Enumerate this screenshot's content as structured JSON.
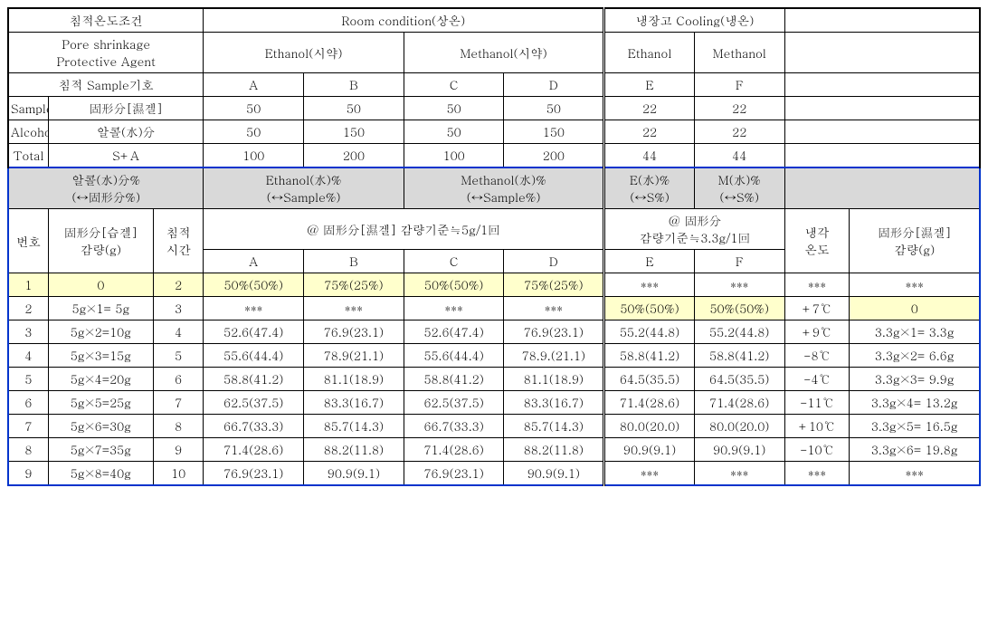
{
  "header": {
    "cond_label": "침적온도조건",
    "room_label": "Room condition(상온)",
    "cooling_label": "냉장고 Cooling(냉온)",
    "agent_label_l1": "Pore shrinkage",
    "agent_label_l2": "Protective Agent",
    "ethanol_reagent": "Ethanol(시약)",
    "methanol_reagent": "Methanol(시약)",
    "ethanol": "Ethanol",
    "methanol": "Methanol",
    "sample_sign": "침적 Sample기호",
    "samples": [
      "A",
      "B",
      "C",
      "D",
      "E",
      "F"
    ],
    "sample_row": {
      "l1": "Sample",
      "l2": "固形分[濕겔]",
      "vals": [
        "50",
        "50",
        "50",
        "50",
        "22",
        "22"
      ]
    },
    "alcohol_row": {
      "l1": "Alcohol",
      "l2": "알콜(水)分",
      "vals": [
        "50",
        "150",
        "50",
        "150",
        "22",
        "22"
      ]
    },
    "total_row": {
      "l1": "Total",
      "l2": "S+A",
      "vals": [
        "100",
        "200",
        "100",
        "200",
        "44",
        "44"
      ]
    }
  },
  "gray": {
    "left_l1": "알콜(水)分%",
    "left_l2": "(↔固形分%)",
    "eth_l1": "Ethanol(水)%",
    "eth_l2": "(↔Sample%)",
    "meth_l1": "Methanol(水)%",
    "meth_l2": "(↔Sample%)",
    "e_l1": "E(水)%",
    "e_l2": "(↔S%)",
    "m_l1": "M(水)%",
    "m_l2": "(↔S%)"
  },
  "subhead": {
    "no": "번호",
    "wet_l1": "固形分[습겔]",
    "wet_l2": "감량(g)",
    "time_l1": "침적",
    "time_l2": "시간",
    "abcd_title": "@ 固形分[濕겔] 감량기준≒5g/1回",
    "ef_title_l1": "@ 固形分",
    "ef_title_l2": "감량기준≒3.3g/1回",
    "temp_l1": "냉각",
    "temp_l2": "온도",
    "right_l1": "固形分[濕겔]",
    "right_l2": "감량(g)",
    "cols": [
      "A",
      "B",
      "C",
      "D",
      "E",
      "F"
    ]
  },
  "rows": [
    {
      "n": "1",
      "wet": "0",
      "t": "2",
      "a": "50%(50%)",
      "b": "75%(25%)",
      "c": "50%(50%)",
      "d": "75%(25%)",
      "e": "***",
      "f": "***",
      "temp": "***",
      "r": "***",
      "hl": "abcd"
    },
    {
      "n": "2",
      "wet": "5g×1=  5g",
      "t": "3",
      "a": "***",
      "b": "***",
      "c": "***",
      "d": "***",
      "e": "50%(50%)",
      "f": "50%(50%)",
      "temp": "+7℃",
      "r": "0",
      "hl": "efr"
    },
    {
      "n": "3",
      "wet": "5g×2=10g",
      "t": "4",
      "a": "52.6(47.4)",
      "b": "76.9(23.1)",
      "c": "52.6(47.4)",
      "d": "76.9(23.1)",
      "e": "55.2(44.8)",
      "f": "55.2(44.8)",
      "temp": "+9℃",
      "r": "3.3g×1=  3.3g"
    },
    {
      "n": "4",
      "wet": "5g×3=15g",
      "t": "5",
      "a": "55.6(44.4)",
      "b": "78.9(21.1)",
      "c": "55.6(44.4)",
      "d": "78.9.(21.1)",
      "e": "58.8(41.2)",
      "f": "58.8(41.2)",
      "temp": "-8℃",
      "r": "3.3g×2=  6.6g"
    },
    {
      "n": "5",
      "wet": "5g×4=20g",
      "t": "6",
      "a": "58.8(41.2)",
      "b": "81.1(18.9)",
      "c": "58.8(41.2)",
      "d": "81.1(18.9)",
      "e": "64.5(35.5)",
      "f": "64.5(35.5)",
      "temp": "-4℃",
      "r": "3.3g×3=  9.9g"
    },
    {
      "n": "6",
      "wet": "5g×5=25g",
      "t": "7",
      "a": "62.5(37.5)",
      "b": "83.3(16.7)",
      "c": "62.5(37.5)",
      "d": "83.3(16.7)",
      "e": "71.4(28.6)",
      "f": "71.4(28.6)",
      "temp": "-11℃",
      "r": "3.3g×4= 13.2g"
    },
    {
      "n": "7",
      "wet": "5g×6=30g",
      "t": "8",
      "a": "66.7(33.3)",
      "b": "85.7(14.3)",
      "c": "66.7(33.3)",
      "d": "85.7(14.3)",
      "e": "80.0(20.0)",
      "f": "80.0(20.0)",
      "temp": "+10℃",
      "r": "3.3g×5= 16.5g"
    },
    {
      "n": "8",
      "wet": "5g×7=35g",
      "t": "9",
      "a": "71.4(28.6)",
      "b": "88.2(11.8)",
      "c": "71.4(28.6)",
      "d": "88.2(11.8)",
      "e": "90.9(9.1)",
      "f": "90.9(9.1)",
      "temp": "-10℃",
      "r": "3.3g×6= 19.8g"
    },
    {
      "n": "9",
      "wet": "5g×8=40g",
      "t": "10",
      "a": "76.9(23.1)",
      "b": "90.9(9.1)",
      "c": "76.9(23.1)",
      "d": "90.9(9.1)",
      "e": "***",
      "f": "***",
      "temp": "***",
      "r": "***"
    }
  ]
}
